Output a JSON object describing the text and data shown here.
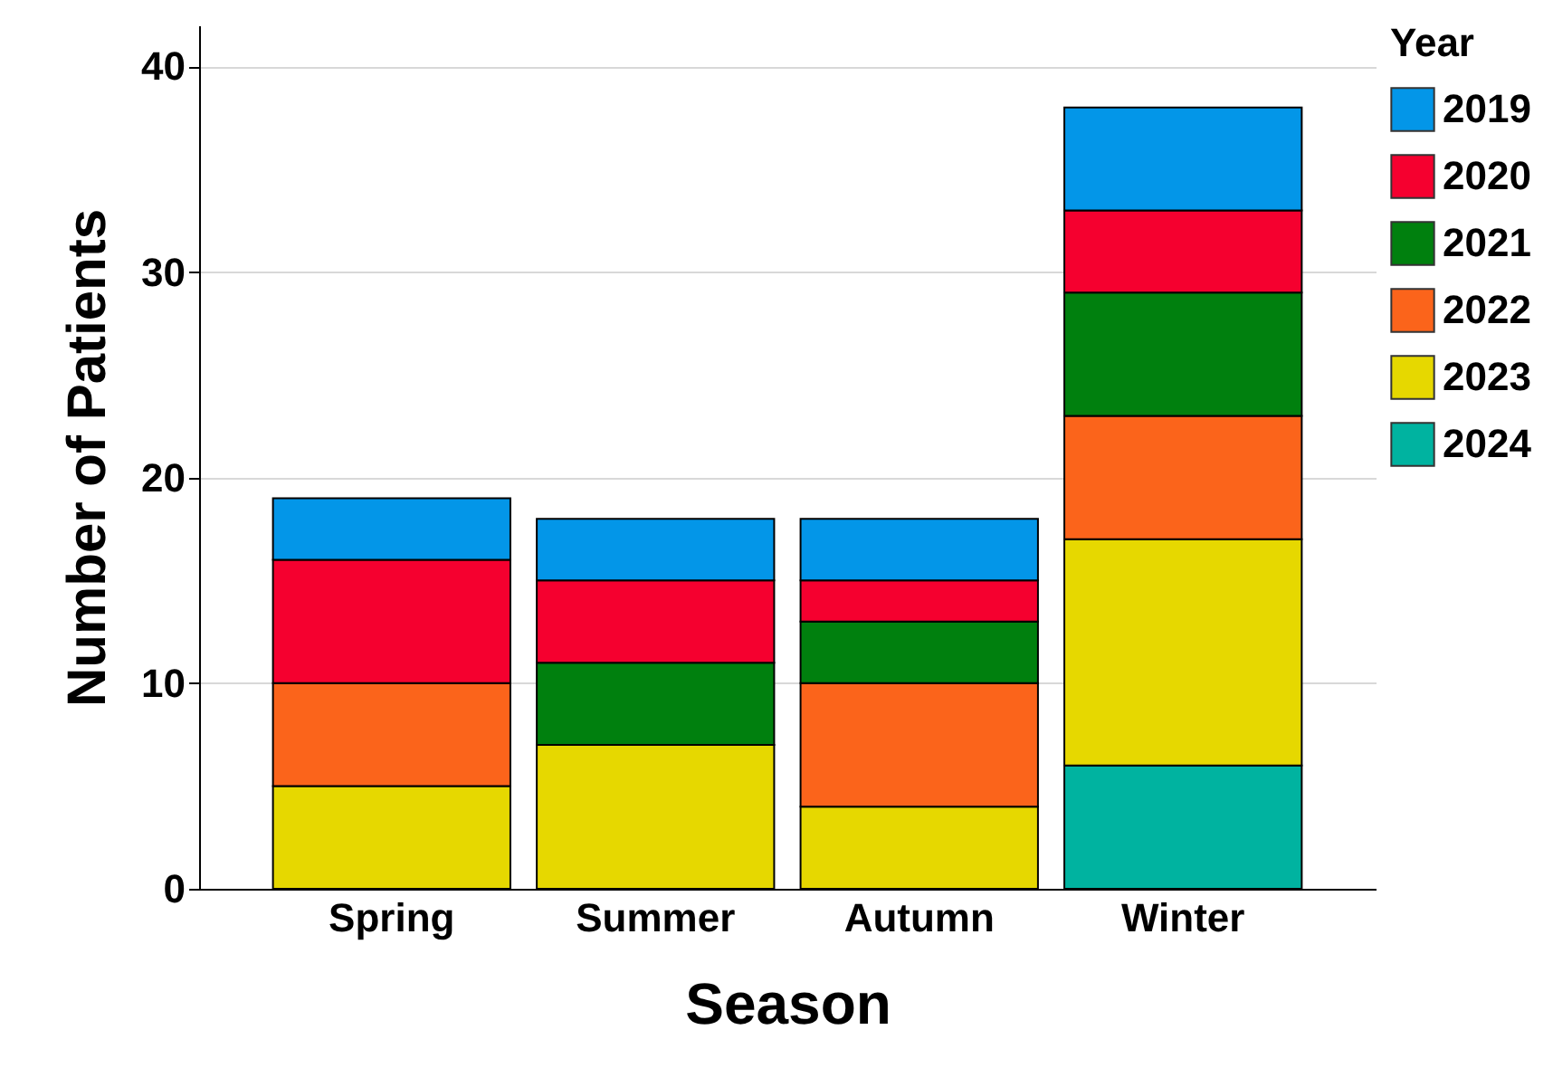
{
  "chart_data": {
    "type": "bar",
    "stacked": true,
    "xlabel": "Season",
    "ylabel": "Number of Patients",
    "legend_title": "Year",
    "legend": "top right",
    "grid": "y",
    "categories": [
      "Spring",
      "Summer",
      "Autumn",
      "Winter"
    ],
    "ylim": [
      0,
      42
    ],
    "yticks": [
      0,
      10,
      20,
      30,
      40
    ],
    "series": [
      {
        "name": "2024",
        "color": "#00b3a0",
        "values": [
          null,
          null,
          null,
          6
        ]
      },
      {
        "name": "2023",
        "color": "#e6d800",
        "values": [
          5,
          7,
          4,
          11
        ]
      },
      {
        "name": "2022",
        "color": "#fb641b",
        "values": [
          5,
          null,
          6,
          6
        ]
      },
      {
        "name": "2021",
        "color": "#00800e",
        "values": [
          null,
          4,
          3,
          6
        ]
      },
      {
        "name": "2020",
        "color": "#f5002f",
        "values": [
          6,
          4,
          2,
          4
        ]
      },
      {
        "name": "2019",
        "color": "#0396e8",
        "values": [
          3,
          3,
          3,
          5
        ]
      }
    ]
  }
}
